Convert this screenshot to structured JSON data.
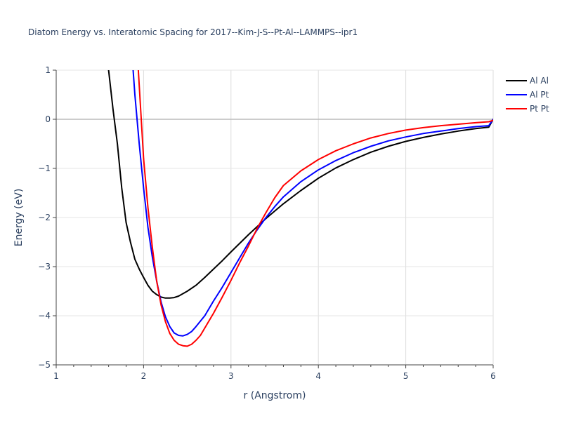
{
  "chart_data": {
    "type": "line",
    "title": "Diatom Energy vs. Interatomic Spacing for 2017--Kim-J-S--Pt-Al--LAMMPS--ipr1",
    "xlabel": "r (Angstrom)",
    "ylabel": "Energy (eV)",
    "xlim": [
      1,
      6
    ],
    "ylim": [
      -5,
      1
    ],
    "xticks": [
      1,
      2,
      3,
      4,
      5,
      6
    ],
    "yticks": [
      1,
      0,
      -1,
      -2,
      -3,
      -4,
      -5
    ],
    "xtick_labels": [
      "1",
      "2",
      "3",
      "4",
      "5",
      "6"
    ],
    "ytick_labels": [
      "1",
      "0",
      "−1",
      "−2",
      "−3",
      "−4",
      "−5"
    ],
    "grid": true,
    "legend_position": "top-right",
    "series": [
      {
        "name": "Al Al",
        "color": "#000000",
        "x": [
          1.6,
          1.65,
          1.7,
          1.75,
          1.8,
          1.85,
          1.9,
          1.95,
          2.0,
          2.05,
          2.1,
          2.15,
          2.2,
          2.25,
          2.3,
          2.35,
          2.4,
          2.5,
          2.6,
          2.7,
          2.8,
          2.9,
          3.0,
          3.2,
          3.4,
          3.6,
          3.8,
          4.0,
          4.2,
          4.4,
          4.6,
          4.8,
          5.0,
          5.2,
          5.4,
          5.6,
          5.8,
          5.95,
          6.0
        ],
        "y": [
          1.0,
          0.2,
          -0.5,
          -1.4,
          -2.1,
          -2.5,
          -2.85,
          -3.05,
          -3.22,
          -3.38,
          -3.5,
          -3.57,
          -3.62,
          -3.64,
          -3.64,
          -3.63,
          -3.6,
          -3.5,
          -3.38,
          -3.22,
          -3.05,
          -2.88,
          -2.7,
          -2.35,
          -2.02,
          -1.72,
          -1.45,
          -1.2,
          -0.99,
          -0.82,
          -0.67,
          -0.55,
          -0.45,
          -0.37,
          -0.3,
          -0.24,
          -0.19,
          -0.16,
          0.0
        ]
      },
      {
        "name": "Al Pt",
        "color": "#0000ff",
        "x": [
          1.88,
          1.9,
          1.95,
          2.0,
          2.05,
          2.1,
          2.15,
          2.2,
          2.25,
          2.3,
          2.35,
          2.4,
          2.45,
          2.5,
          2.55,
          2.6,
          2.7,
          2.8,
          2.9,
          3.0,
          3.1,
          3.2,
          3.3,
          3.4,
          3.5,
          3.6,
          3.8,
          4.0,
          4.2,
          4.4,
          4.6,
          4.8,
          5.0,
          5.2,
          5.4,
          5.6,
          5.8,
          5.95,
          6.0
        ],
        "y": [
          1.0,
          0.5,
          -0.5,
          -1.4,
          -2.2,
          -2.8,
          -3.3,
          -3.72,
          -4.02,
          -4.22,
          -4.35,
          -4.4,
          -4.41,
          -4.38,
          -4.32,
          -4.22,
          -4.0,
          -3.7,
          -3.42,
          -3.12,
          -2.82,
          -2.52,
          -2.25,
          -2.0,
          -1.78,
          -1.58,
          -1.27,
          -1.03,
          -0.84,
          -0.68,
          -0.55,
          -0.44,
          -0.36,
          -0.29,
          -0.24,
          -0.19,
          -0.15,
          -0.13,
          0.0
        ]
      },
      {
        "name": "Pt Pt",
        "color": "#ff0000",
        "x": [
          1.94,
          1.96,
          2.0,
          2.05,
          2.1,
          2.15,
          2.2,
          2.25,
          2.3,
          2.35,
          2.4,
          2.45,
          2.5,
          2.55,
          2.6,
          2.65,
          2.7,
          2.8,
          2.9,
          3.0,
          3.1,
          3.2,
          3.3,
          3.4,
          3.5,
          3.6,
          3.8,
          4.0,
          4.2,
          4.4,
          4.6,
          4.8,
          5.0,
          5.2,
          5.4,
          5.6,
          5.8,
          5.95,
          6.0
        ],
        "y": [
          1.0,
          0.4,
          -0.8,
          -1.8,
          -2.6,
          -3.3,
          -3.78,
          -4.12,
          -4.36,
          -4.5,
          -4.58,
          -4.61,
          -4.62,
          -4.58,
          -4.5,
          -4.4,
          -4.25,
          -3.95,
          -3.62,
          -3.28,
          -2.92,
          -2.58,
          -2.22,
          -1.9,
          -1.6,
          -1.35,
          -1.05,
          -0.82,
          -0.64,
          -0.5,
          -0.38,
          -0.29,
          -0.22,
          -0.17,
          -0.13,
          -0.1,
          -0.07,
          -0.05,
          -0.02
        ]
      }
    ]
  }
}
